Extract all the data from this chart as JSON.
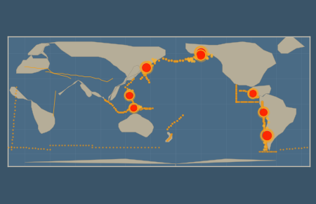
{
  "background_color": "#3a5468",
  "ocean_color": "#4a6b85",
  "land_color": "#b5ad98",
  "land_edge_color": "#9a9280",
  "grid_color": "#5b7a94",
  "plate_dot_color": "#f0a020",
  "plate_dot_edge": "#cc7710",
  "plate_line_color": "#f0a020",
  "eq_small_color": "#f5b030",
  "eq_large_color": "#ff2200",
  "eq_large_ring": "#f5a020",
  "frame_color": "#c8c0b0",
  "central_longitude": 160,
  "lat_min": -75,
  "lat_max": 80,
  "figsize": [
    4.5,
    2.91
  ],
  "dpi": 100
}
